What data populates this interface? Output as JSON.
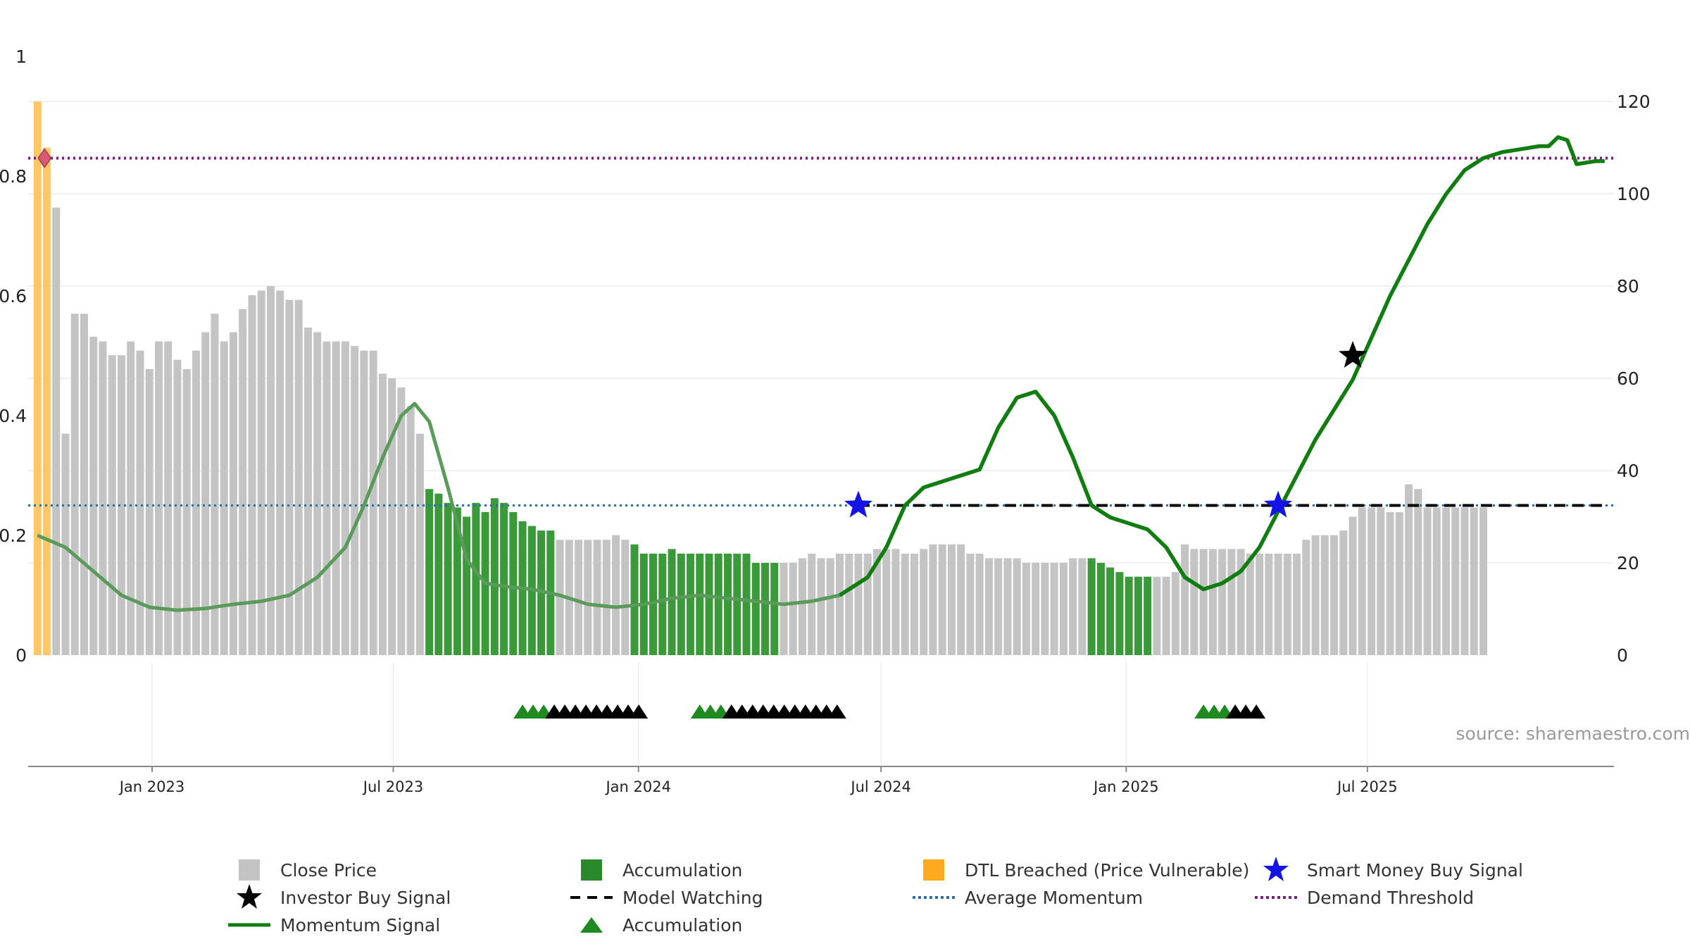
{
  "chart_data": {
    "type": "bar",
    "source_label": "source: sharemaestro.com",
    "left_axis": {
      "ticks": [
        0,
        0.2,
        0.4,
        0.6,
        0.8,
        1
      ],
      "labels": [
        "0",
        "0.2",
        "0.4",
        "0.6",
        "0.8",
        "1"
      ],
      "ylim": [
        0,
        1.04
      ]
    },
    "right_axis": {
      "ticks": [
        0,
        20,
        40,
        60,
        80,
        100,
        120
      ],
      "labels": [
        "0",
        "20",
        "40",
        "60",
        "80",
        "100",
        "120"
      ],
      "ylim": [
        0,
        124
      ]
    },
    "x_ticks": [
      "Jan 2023",
      "Jul 2023",
      "Jan 2024",
      "Jul 2024",
      "Jan 2025",
      "Jul 2025"
    ],
    "close_price": {
      "start_date": "2022-10-07",
      "interval_days": 7,
      "values": [
        120,
        110,
        97,
        48,
        74,
        74,
        69,
        68,
        65,
        65,
        68,
        66,
        62,
        68,
        68,
        64,
        62,
        66,
        70,
        74,
        68,
        70,
        75,
        78,
        79,
        80,
        79,
        77,
        77,
        71,
        70,
        68,
        68,
        68,
        67,
        66,
        66,
        61,
        60,
        58,
        54,
        48,
        36,
        35,
        33,
        32,
        30,
        33,
        31,
        34,
        33,
        31,
        29,
        28,
        27,
        27,
        25,
        25,
        25,
        25,
        25,
        25,
        26,
        25,
        24,
        22,
        22,
        22,
        23,
        22,
        22,
        22,
        22,
        22,
        22,
        22,
        22,
        20,
        20,
        20,
        20,
        20,
        21,
        22,
        21,
        21,
        22,
        22,
        22,
        22,
        23,
        23,
        23,
        22,
        22,
        23,
        24,
        24,
        24,
        24,
        22,
        22,
        21,
        21,
        21,
        21,
        20,
        20,
        20,
        20,
        20,
        21,
        21,
        21,
        20,
        19,
        18,
        17,
        17,
        17,
        17,
        17,
        18,
        24,
        23,
        23,
        23,
        23,
        23,
        23,
        22,
        22,
        22,
        22,
        22,
        22,
        25,
        26,
        26,
        26,
        27,
        30,
        32,
        32,
        32,
        31,
        31,
        37,
        36,
        32,
        32,
        32,
        32,
        32,
        32,
        32
      ],
      "accumulation_ranges": [
        [
          42,
          55
        ],
        [
          64,
          79
        ],
        [
          113,
          119
        ]
      ],
      "dtl_breached_indices": [
        0,
        1
      ]
    },
    "momentum_signal": {
      "points": [
        [
          "2022-10-07",
          0.2
        ],
        [
          "2022-10-28",
          0.18
        ],
        [
          "2022-11-18",
          0.14
        ],
        [
          "2022-12-09",
          0.1
        ],
        [
          "2022-12-30",
          0.08
        ],
        [
          "2023-01-20",
          0.075
        ],
        [
          "2023-02-10",
          0.078
        ],
        [
          "2023-03-03",
          0.085
        ],
        [
          "2023-03-24",
          0.09
        ],
        [
          "2023-04-14",
          0.1
        ],
        [
          "2023-05-05",
          0.13
        ],
        [
          "2023-05-26",
          0.18
        ],
        [
          "2023-06-09",
          0.25
        ],
        [
          "2023-06-23",
          0.33
        ],
        [
          "2023-07-07",
          0.4
        ],
        [
          "2023-07-17",
          0.42
        ],
        [
          "2023-07-28",
          0.39
        ],
        [
          "2023-08-11",
          0.28
        ],
        [
          "2023-08-25",
          0.16
        ],
        [
          "2023-09-08",
          0.12
        ],
        [
          "2023-09-22",
          0.115
        ],
        [
          "2023-10-13",
          0.11
        ],
        [
          "2023-11-03",
          0.1
        ],
        [
          "2023-11-24",
          0.085
        ],
        [
          "2023-12-15",
          0.08
        ],
        [
          "2024-01-05",
          0.085
        ],
        [
          "2024-01-26",
          0.095
        ],
        [
          "2024-02-16",
          0.1
        ],
        [
          "2024-03-08",
          0.095
        ],
        [
          "2024-03-29",
          0.09
        ],
        [
          "2024-04-19",
          0.085
        ],
        [
          "2024-05-10",
          0.09
        ],
        [
          "2024-05-31",
          0.1
        ],
        [
          "2024-06-21",
          0.13
        ],
        [
          "2024-07-05",
          0.18
        ],
        [
          "2024-07-19",
          0.25
        ],
        [
          "2024-08-02",
          0.28
        ],
        [
          "2024-08-16",
          0.29
        ],
        [
          "2024-08-30",
          0.3
        ],
        [
          "2024-09-13",
          0.31
        ],
        [
          "2024-09-27",
          0.38
        ],
        [
          "2024-10-11",
          0.43
        ],
        [
          "2024-10-25",
          0.44
        ],
        [
          "2024-11-08",
          0.4
        ],
        [
          "2024-11-22",
          0.33
        ],
        [
          "2024-12-06",
          0.25
        ],
        [
          "2024-12-20",
          0.23
        ],
        [
          "2025-01-03",
          0.22
        ],
        [
          "2025-01-17",
          0.21
        ],
        [
          "2025-01-31",
          0.18
        ],
        [
          "2025-02-14",
          0.13
        ],
        [
          "2025-02-28",
          0.11
        ],
        [
          "2025-03-14",
          0.12
        ],
        [
          "2025-03-28",
          0.14
        ],
        [
          "2025-04-11",
          0.18
        ],
        [
          "2025-04-25",
          0.24
        ],
        [
          "2025-05-09",
          0.3
        ],
        [
          "2025-05-23",
          0.36
        ],
        [
          "2025-06-06",
          0.41
        ],
        [
          "2025-06-20",
          0.46
        ],
        [
          "2025-07-04",
          0.53
        ],
        [
          "2025-07-18",
          0.6
        ],
        [
          "2025-08-01",
          0.66
        ],
        [
          "2025-08-15",
          0.72
        ],
        [
          "2025-08-29",
          0.77
        ],
        [
          "2025-09-12",
          0.81
        ],
        [
          "2025-09-26",
          0.83
        ],
        [
          "2025-10-10",
          0.84
        ],
        [
          "2025-10-24",
          0.845
        ],
        [
          "2025-11-07",
          0.85
        ],
        [
          "2025-11-14",
          0.85
        ],
        [
          "2025-11-21",
          0.865
        ],
        [
          "2025-11-28",
          0.86
        ],
        [
          "2025-12-05",
          0.82
        ],
        [
          "2025-12-19",
          0.825
        ],
        [
          "2025-12-26",
          0.825
        ]
      ]
    },
    "momentum_solid_from": "2024-06-14",
    "average_momentum": 0.25,
    "demand_threshold": 0.83,
    "model_watching": {
      "from": "2024-06-14",
      "to": "2025-12-26",
      "value": 0.25
    },
    "smart_money_buy_signals": [
      [
        "2024-06-14",
        0.25
      ],
      [
        "2025-04-25",
        0.25
      ]
    ],
    "investor_buy_signals": [
      [
        "2025-06-20",
        0.5
      ]
    ],
    "dtl_marker": [
      "2022-10-07",
      0.83
    ],
    "accumulation_triangle_groups": [
      {
        "from": "2023-10-06",
        "green": 3,
        "black": 9
      },
      {
        "from": "2024-02-16",
        "green": 3,
        "black": 11
      },
      {
        "from": "2025-02-28",
        "green": 3,
        "black": 3
      }
    ],
    "legend": [
      {
        "label": "Close Price",
        "icon": "gray-square"
      },
      {
        "label": "Accumulation",
        "icon": "green-square"
      },
      {
        "label": "DTL Breached (Price Vulnerable)",
        "icon": "orange-square"
      },
      {
        "label": "Smart Money Buy Signal",
        "icon": "blue-star"
      },
      {
        "label": "Investor Buy Signal",
        "icon": "black-star"
      },
      {
        "label": "Model Watching",
        "icon": "black-dashed-line"
      },
      {
        "label": "Average Momentum",
        "icon": "blue-dotted-line"
      },
      {
        "label": "Demand Threshold",
        "icon": "purple-dotted-line"
      },
      {
        "label": "Momentum Signal",
        "icon": "green-line"
      },
      {
        "label": "Accumulation",
        "icon": "green-triangle"
      }
    ],
    "colors": {
      "close_price": "#c4c4c4",
      "accumulation": "#3a9a3a",
      "dtl_breached": "#ffc864",
      "momentum": "#0f7d0f",
      "model_watching": "#000000",
      "average_momentum": "#2f6f9f",
      "demand_threshold": "#7a1f7a",
      "smart_money": "#1414e6",
      "investor": "#000000",
      "triangle_green": "#1f8a1f",
      "triangle_black": "#000000"
    }
  }
}
